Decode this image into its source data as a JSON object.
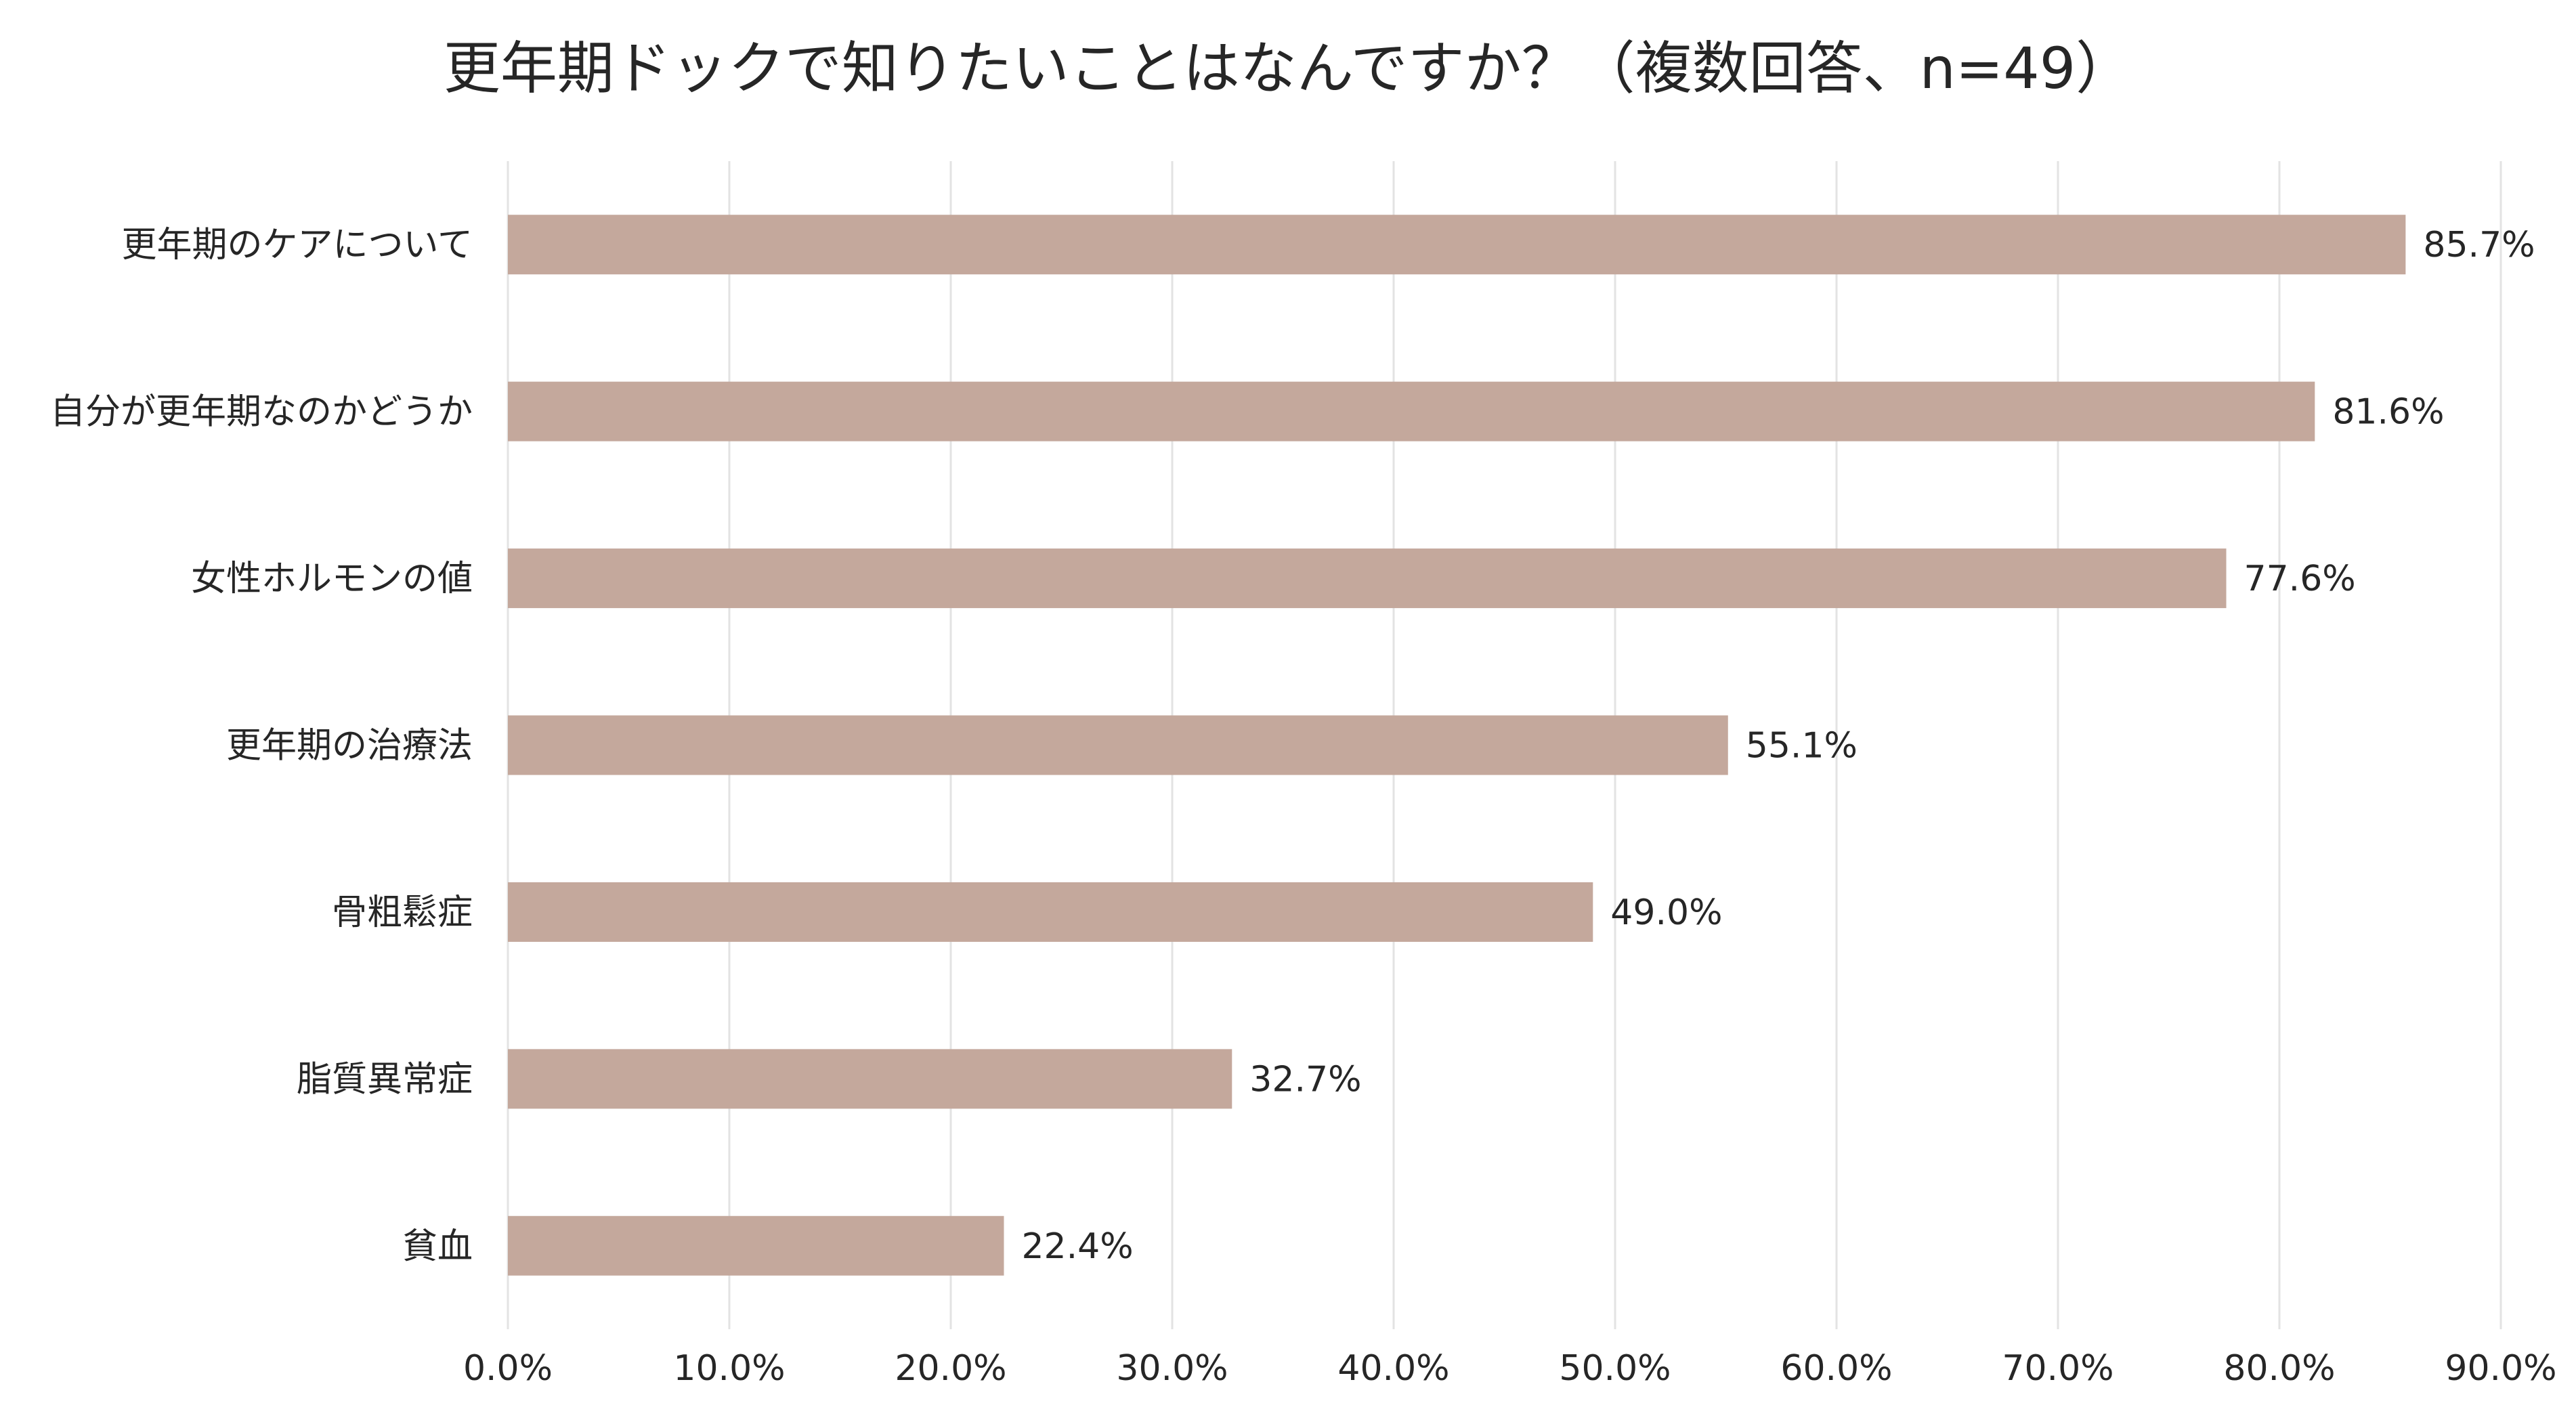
{
  "chart_data": {
    "type": "bar",
    "orientation": "horizontal",
    "title": "更年期ドックで知りたいことはなんですか？（複数回答、n=49）",
    "categories": [
      "更年期のケアについて",
      "自分が更年期なのかどうか",
      "女性ホルモンの値",
      "更年期の治療法",
      "骨粗鬆症",
      "脂質異常症",
      "貧血"
    ],
    "values": [
      85.7,
      81.6,
      77.6,
      55.1,
      49.0,
      32.7,
      22.4
    ],
    "value_labels": [
      "85.7%",
      "81.6%",
      "77.6%",
      "55.1%",
      "49.0%",
      "32.7%",
      "22.4%"
    ],
    "xlim": [
      0,
      90
    ],
    "ticks": [
      0,
      10,
      20,
      30,
      40,
      50,
      60,
      70,
      80,
      90
    ],
    "tick_labels": [
      "0.0%",
      "10.0%",
      "20.0%",
      "30.0%",
      "40.0%",
      "50.0%",
      "60.0%",
      "70.0%",
      "80.0%",
      "90.0%"
    ],
    "grid": "vertical",
    "legend": "none",
    "bar_color": "#c4a89c",
    "grid_color": "#e3e3e3",
    "text_color": "#262626"
  }
}
